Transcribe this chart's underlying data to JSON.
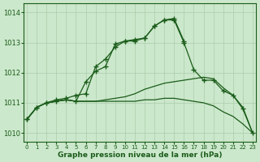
{
  "background_color": "#cce8cc",
  "grid_color": "#aaccaa",
  "line_color": "#1a5c1a",
  "xlabel": "Graphe pression niveau de la mer (hPa)",
  "ylim": [
    1009.7,
    1014.3
  ],
  "yticks": [
    1010,
    1011,
    1012,
    1013,
    1014
  ],
  "xlim": [
    0,
    23
  ],
  "xticks": [
    0,
    1,
    2,
    3,
    4,
    5,
    6,
    7,
    8,
    9,
    10,
    11,
    12,
    13,
    14,
    15,
    16,
    17,
    18,
    19,
    20,
    21,
    22,
    23
  ],
  "series_with_markers": [
    [
      1010.45,
      1010.85,
      1011.0,
      1011.1,
      1011.15,
      1011.25,
      1011.3,
      1012.2,
      1012.45,
      1012.85,
      1013.05,
      1013.1,
      1013.15,
      1013.55,
      1013.75,
      1013.8,
      1013.05,
      null,
      null,
      null,
      null,
      null,
      null,
      null
    ],
    [
      1010.45,
      1010.85,
      1011.0,
      1011.05,
      1011.1,
      1011.05,
      1011.7,
      1012.05,
      1012.2,
      1012.95,
      1013.05,
      1013.05,
      1013.15,
      1013.55,
      1013.75,
      1013.75,
      1013.0,
      1012.1,
      1011.75,
      1011.75,
      1011.4,
      1011.25,
      1010.8,
      1010.0
    ]
  ],
  "series_no_markers": [
    [
      1010.45,
      1010.85,
      1011.0,
      1011.05,
      1011.1,
      1011.05,
      1011.05,
      1011.05,
      1011.1,
      1011.15,
      1011.2,
      1011.3,
      1011.45,
      1011.55,
      1011.65,
      1011.7,
      1011.75,
      1011.8,
      1011.85,
      1011.8,
      1011.5,
      1011.25,
      1010.85,
      1010.0
    ],
    [
      1010.45,
      1010.85,
      1011.0,
      1011.05,
      1011.1,
      1011.05,
      1011.05,
      1011.05,
      1011.05,
      1011.05,
      1011.05,
      1011.05,
      1011.1,
      1011.1,
      1011.15,
      1011.15,
      1011.1,
      1011.05,
      1011.0,
      1010.9,
      1010.7,
      1010.55,
      1010.3,
      1010.0
    ]
  ]
}
